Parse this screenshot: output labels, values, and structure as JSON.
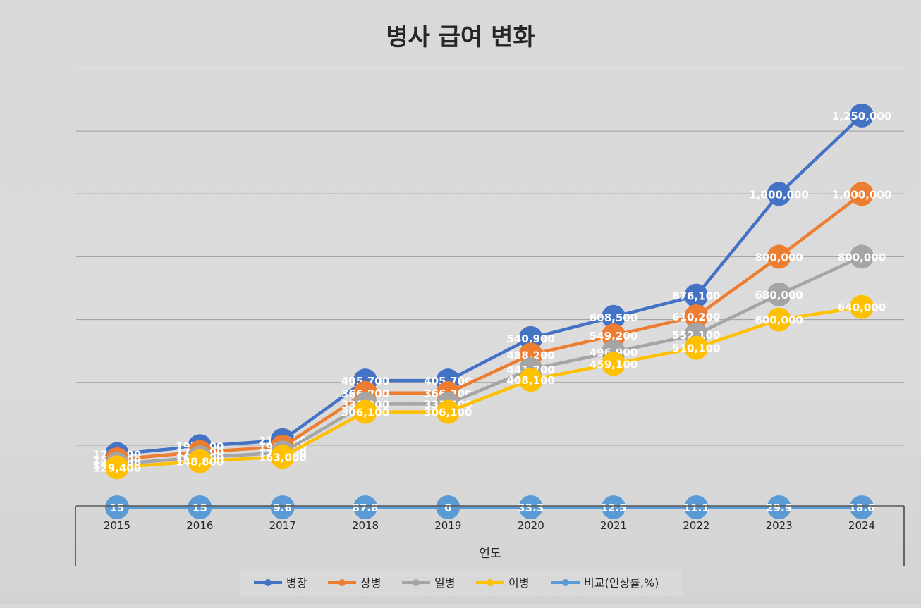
{
  "chart_data": {
    "type": "line",
    "title": "병사 급여 변화",
    "xlabel": "연도",
    "ylabel": "",
    "categories": [
      "2015",
      "2016",
      "2017",
      "2018",
      "2019",
      "2020",
      "2021",
      "2022",
      "2023",
      "2024"
    ],
    "ylim": [
      0,
      1400000
    ],
    "grid": true,
    "legend_position": "bottom",
    "series": [
      {
        "name": "병장",
        "color": "#4472c4",
        "values": [
          171400,
          197000,
          216000,
          405700,
          405700,
          540900,
          608500,
          676100,
          1000000,
          1250000
        ],
        "labels": [
          "171,400",
          "197,000",
          "216,000",
          "405,700",
          "405,700",
          "540,900",
          "608,500",
          "676,100",
          "1,000,000",
          "1,250,000"
        ]
      },
      {
        "name": "상병",
        "color": "#ed7d31",
        "values": [
          154800,
          178000,
          195000,
          366200,
          366200,
          488200,
          549200,
          610200,
          800000,
          1000000
        ],
        "labels": [
          "154,800",
          "178,000",
          "195,000",
          "366,200",
          "366,200",
          "488,200",
          "549,200",
          "610,200",
          "800,000",
          "1,000,000"
        ]
      },
      {
        "name": "일병",
        "color": "#a5a5a5",
        "values": [
          140000,
          161000,
          176400,
          331300,
          331300,
          441700,
          496900,
          552100,
          680000,
          800000
        ],
        "labels": [
          "140,000",
          "161,000",
          "176,400",
          "331,300",
          "331,300",
          "441,700",
          "496,900",
          "552,100",
          "680,000",
          "800,000"
        ]
      },
      {
        "name": "이병",
        "color": "#ffc000",
        "values": [
          129400,
          148800,
          163000,
          306100,
          306100,
          408100,
          459100,
          510100,
          600000,
          640000
        ],
        "labels": [
          "129,400",
          "148,800",
          "163,000",
          "306,100",
          "306,100",
          "408,100",
          "459,100",
          "510,100",
          "600,000",
          "640,000"
        ]
      },
      {
        "name": "비교(인상률,%)",
        "color": "#5b9bd5",
        "values": [
          15,
          15,
          9.6,
          87.8,
          0,
          33.3,
          12.5,
          11.1,
          29.9,
          18.6
        ],
        "labels": [
          "15",
          "15",
          "9.6",
          "87.8",
          "0",
          "33.3",
          "12.5",
          "11.1",
          "29.9",
          "18.6"
        ]
      }
    ]
  }
}
